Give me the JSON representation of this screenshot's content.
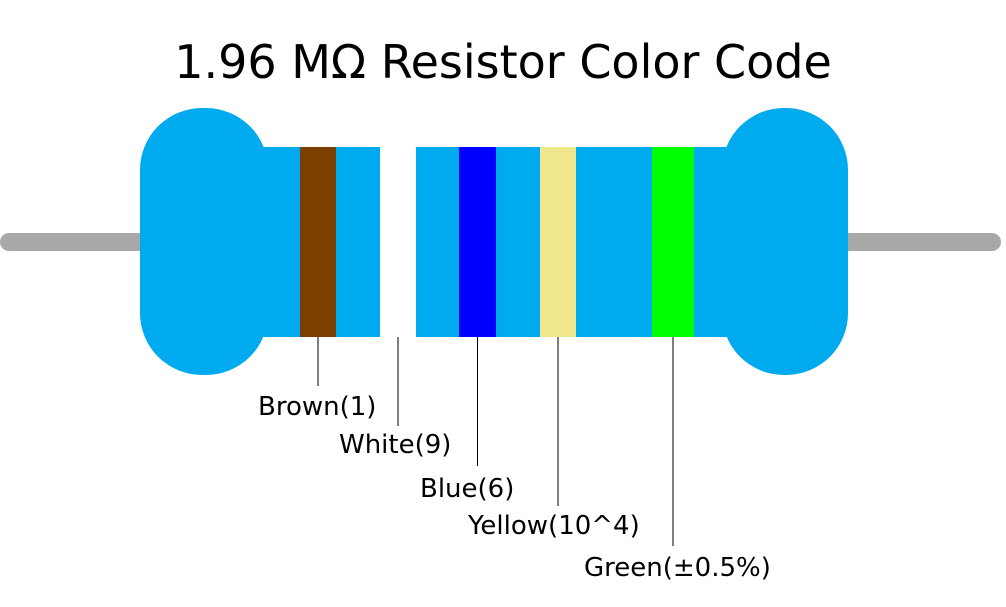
{
  "title": "1.96 MΩ Resistor Color Code",
  "body_color": "#00aaee",
  "lead_color": "#a8a8a8",
  "bands": [
    {
      "label": "Brown(1)",
      "color": "#7b3f00"
    },
    {
      "label": "White(9)",
      "color": "#ffffff"
    },
    {
      "label": "Blue(6)",
      "color": "#0000ff"
    },
    {
      "label": "Yellow(10^4)",
      "color": "#f0e68c"
    },
    {
      "label": "Green(±0.5%)",
      "color": "#00ff00"
    }
  ]
}
